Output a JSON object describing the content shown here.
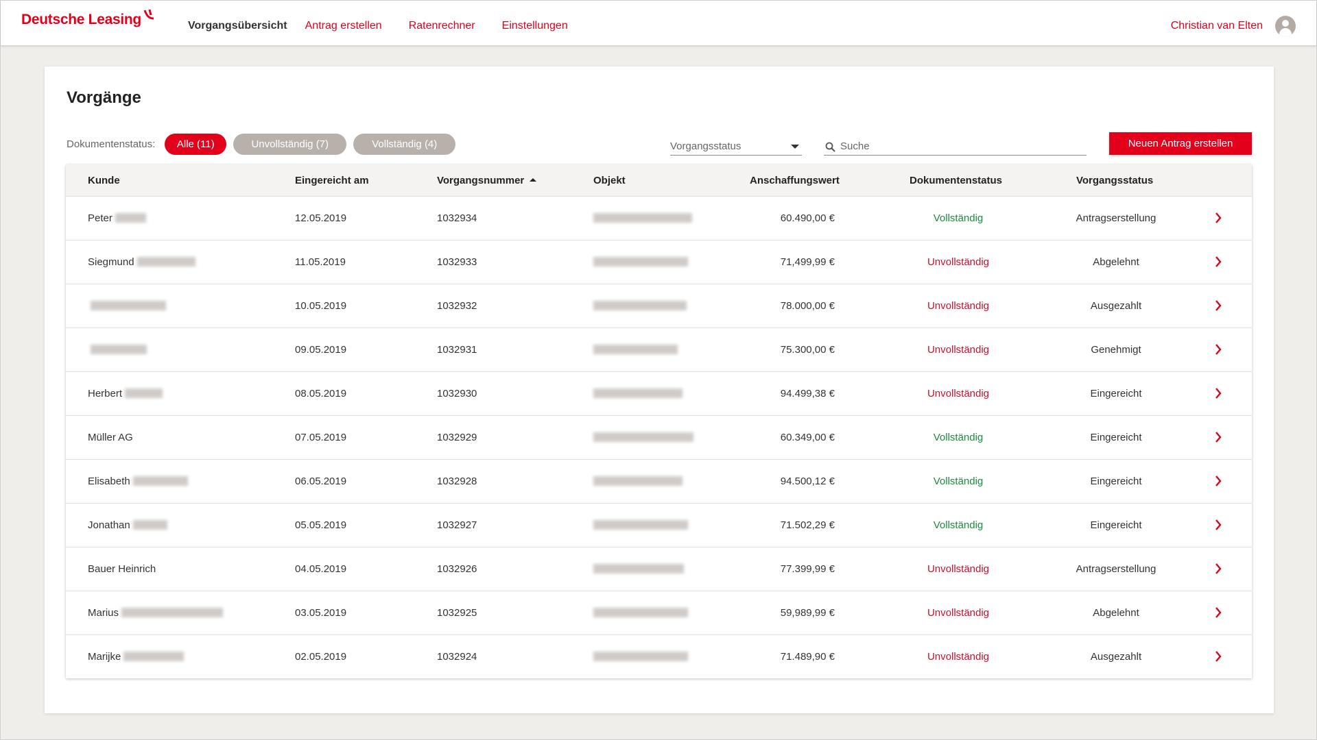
{
  "app": {
    "brand": "Deutsche Leasing",
    "brand_color": "#e2001a"
  },
  "nav": {
    "items": [
      {
        "label": "Vorgangsübersicht",
        "active": true
      },
      {
        "label": "Antrag erstellen",
        "active": false
      },
      {
        "label": "Ratenrechner",
        "active": false
      },
      {
        "label": "Einstellungen",
        "active": false
      }
    ]
  },
  "user": {
    "name": "Christian van Elten",
    "icon": "user-avatar-icon"
  },
  "page": {
    "title": "Vorgänge"
  },
  "filters": {
    "label": "Dokumentenstatus:",
    "chips": [
      {
        "label": "Alle (11)",
        "active": true
      },
      {
        "label": "Unvollständig (7)",
        "active": false
      },
      {
        "label": "Vollständig (4)",
        "active": false
      }
    ],
    "status_select_placeholder": "Vorgangsstatus",
    "search_placeholder": "Suche",
    "new_button": "Neuen Antrag erstellen"
  },
  "table": {
    "columns": [
      "Kunde",
      "Eingereicht am",
      "Vorgangsnummer",
      "Objekt",
      "Anschaffungswert",
      "Dokumentenstatus",
      "Vorgangsstatus"
    ],
    "sorted_column": "Vorgangsnummer",
    "rows": [
      {
        "kunde": "Peter",
        "datum": "12.05.2019",
        "nummer": "1032934",
        "wert": "60.490,00 €",
        "dok": "Vollständig",
        "status": "Antragserstellung"
      },
      {
        "kunde": "Siegmund",
        "datum": "11.05.2019",
        "nummer": "1032933",
        "wert": "71,499,99 €",
        "dok": "Unvollständig",
        "status": "Abgelehnt"
      },
      {
        "kunde": "",
        "datum": "10.05.2019",
        "nummer": "1032932",
        "wert": "78.000,00 €",
        "dok": "Unvollständig",
        "status": "Ausgezahlt"
      },
      {
        "kunde": "",
        "datum": "09.05.2019",
        "nummer": "1032931",
        "wert": "75.300,00 €",
        "dok": "Unvollständig",
        "status": "Genehmigt"
      },
      {
        "kunde": "Herbert",
        "datum": "08.05.2019",
        "nummer": "1032930",
        "wert": "94.499,38 €",
        "dok": "Unvollständig",
        "status": "Eingereicht"
      },
      {
        "kunde": "Müller AG",
        "datum": "07.05.2019",
        "nummer": "1032929",
        "wert": "60.349,00 €",
        "dok": "Vollständig",
        "status": "Eingereicht"
      },
      {
        "kunde": "Elisabeth",
        "datum": "06.05.2019",
        "nummer": "1032928",
        "wert": "94.500,12 €",
        "dok": "Vollständig",
        "status": "Eingereicht"
      },
      {
        "kunde": "Jonathan",
        "datum": "05.05.2019",
        "nummer": "1032927",
        "wert": "71.502,29 €",
        "dok": "Vollständig",
        "status": "Eingereicht"
      },
      {
        "kunde": "Bauer Heinrich",
        "datum": "04.05.2019",
        "nummer": "1032926",
        "wert": "77.399,99 €",
        "dok": "Unvollständig",
        "status": "Antragserstellung"
      },
      {
        "kunde": "Marius",
        "datum": "03.05.2019",
        "nummer": "1032925",
        "wert": "59,989,99 €",
        "dok": "Unvollständig",
        "status": "Abgelehnt"
      },
      {
        "kunde": "Marijke",
        "datum": "02.05.2019",
        "nummer": "1032924",
        "wert": "71.489,90 €",
        "dok": "Unvollständig",
        "status": "Ausgezahlt"
      }
    ]
  },
  "colors": {
    "accent": "#e2001a",
    "complete": "#1e8a3b",
    "incomplete": "#c8102e",
    "chip_inactive": "#b8b0aa",
    "background": "#f0eeea"
  }
}
